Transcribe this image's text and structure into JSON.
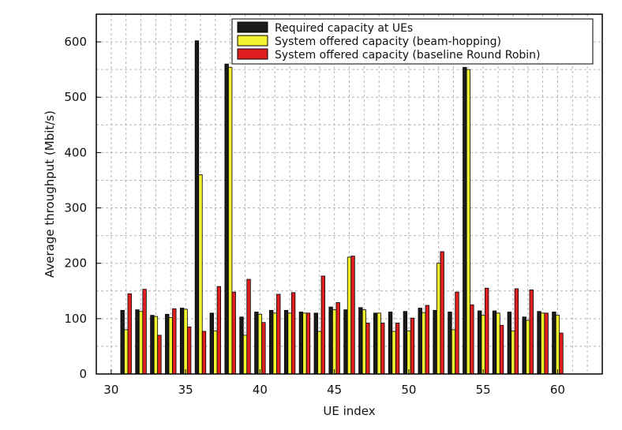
{
  "chart_data": {
    "type": "bar",
    "xlabel": "UE index",
    "ylabel": "Average throughput (Mbit/s)",
    "xlim": [
      29,
      63
    ],
    "ylim": [
      0,
      650
    ],
    "x_ticks": [
      30,
      35,
      40,
      45,
      50,
      55,
      60
    ],
    "y_ticks": [
      0,
      100,
      200,
      300,
      400,
      500,
      600
    ],
    "grid": true,
    "legend_position": "top-right",
    "categories": [
      31,
      32,
      33,
      34,
      35,
      36,
      37,
      38,
      39,
      40,
      41,
      42,
      43,
      44,
      45,
      46,
      47,
      48,
      49,
      50,
      51,
      52,
      53,
      54,
      55,
      56,
      57,
      58,
      59,
      60
    ],
    "series": [
      {
        "name": "Required capacity at UEs",
        "color": "#1a1a1a",
        "values": [
          115,
          116,
          106,
          108,
          119,
          602,
          110,
          560,
          103,
          112,
          115,
          115,
          112,
          110,
          121,
          116,
          120,
          110,
          112,
          113,
          119,
          115,
          112,
          554,
          114,
          114,
          112,
          103,
          113,
          112
        ]
      },
      {
        "name": "System offered capacity (beam-hopping)",
        "color": "#f2f230",
        "values": [
          80,
          113,
          104,
          102,
          117,
          360,
          78,
          554,
          70,
          108,
          110,
          110,
          110,
          77,
          116,
          211,
          116,
          110,
          77,
          78,
          111,
          200,
          80,
          550,
          106,
          110,
          78,
          97,
          110,
          106
        ]
      },
      {
        "name": "System offered capacity (baseline Round Robin)",
        "color": "#e02020",
        "values": [
          145,
          153,
          70,
          118,
          85,
          77,
          158,
          148,
          171,
          93,
          144,
          147,
          110,
          177,
          129,
          213,
          92,
          92,
          92,
          101,
          124,
          221,
          148,
          125,
          155,
          88,
          154,
          152,
          110,
          74
        ]
      }
    ]
  }
}
